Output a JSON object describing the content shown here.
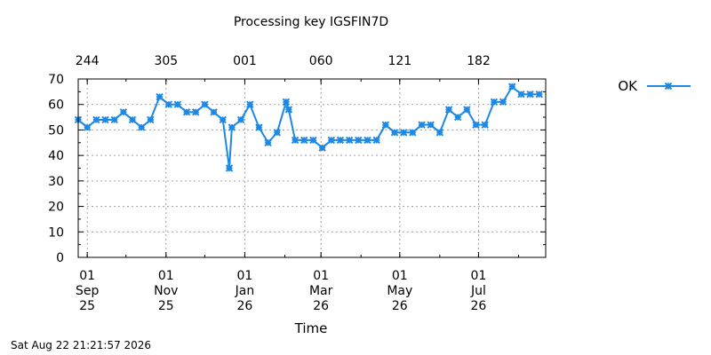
{
  "chart_data": {
    "type": "line",
    "title": "Processing key IGSFIN7D",
    "xlabel": "Time",
    "ylabel": "",
    "ylim": [
      0,
      70
    ],
    "y_ticks": [
      "0",
      "10",
      "20",
      "30",
      "40",
      "50",
      "60",
      "70"
    ],
    "x_ticks_bottom": [
      {
        "day": "01",
        "month": "Sep",
        "year": "25",
        "date": "2025-09-01"
      },
      {
        "day": "01",
        "month": "Nov",
        "year": "25",
        "date": "2025-11-01"
      },
      {
        "day": "01",
        "month": "Jan",
        "year": "26",
        "date": "2026-01-01"
      },
      {
        "day": "01",
        "month": "Mar",
        "year": "26",
        "date": "2026-03-01"
      },
      {
        "day": "01",
        "month": "May",
        "year": "26",
        "date": "2026-05-01"
      },
      {
        "day": "01",
        "month": "Jul",
        "year": "26",
        "date": "2026-07-01"
      }
    ],
    "x_ticks_top": [
      {
        "label": "244",
        "date": "2025-09-01"
      },
      {
        "label": "305",
        "date": "2025-11-01"
      },
      {
        "label": "001",
        "date": "2026-01-01"
      },
      {
        "label": "060",
        "date": "2026-03-01"
      },
      {
        "label": "121",
        "date": "2026-05-01"
      },
      {
        "label": "182",
        "date": "2026-07-01"
      }
    ],
    "xlim": [
      "2025-08-25",
      "2026-08-22"
    ],
    "grid": true,
    "legend_position": "right",
    "series": [
      {
        "name": "OK",
        "color": "#1e88e5",
        "marker": "x",
        "points": [
          [
            "2025-08-25",
            54
          ],
          [
            "2025-09-01",
            51
          ],
          [
            "2025-09-08",
            54
          ],
          [
            "2025-09-15",
            54
          ],
          [
            "2025-09-22",
            54
          ],
          [
            "2025-09-29",
            57
          ],
          [
            "2025-10-06",
            54
          ],
          [
            "2025-10-13",
            51
          ],
          [
            "2025-10-20",
            54
          ],
          [
            "2025-10-27",
            63
          ],
          [
            "2025-11-03",
            60
          ],
          [
            "2025-11-10",
            60
          ],
          [
            "2025-11-17",
            57
          ],
          [
            "2025-11-24",
            57
          ],
          [
            "2025-12-01",
            60
          ],
          [
            "2025-12-08",
            57
          ],
          [
            "2025-12-15",
            54
          ],
          [
            "2025-12-20",
            35
          ],
          [
            "2025-12-22",
            51
          ],
          [
            "2025-12-29",
            54
          ],
          [
            "2026-01-05",
            60
          ],
          [
            "2026-01-12",
            51
          ],
          [
            "2026-01-19",
            45
          ],
          [
            "2026-01-26",
            49
          ],
          [
            "2026-02-02",
            61
          ],
          [
            "2026-02-04",
            58
          ],
          [
            "2026-02-09",
            46
          ],
          [
            "2026-02-16",
            46
          ],
          [
            "2026-02-23",
            46
          ],
          [
            "2026-03-02",
            43
          ],
          [
            "2026-03-09",
            46
          ],
          [
            "2026-03-16",
            46
          ],
          [
            "2026-03-23",
            46
          ],
          [
            "2026-03-30",
            46
          ],
          [
            "2026-04-06",
            46
          ],
          [
            "2026-04-13",
            46
          ],
          [
            "2026-04-20",
            52
          ],
          [
            "2026-04-27",
            49
          ],
          [
            "2026-05-04",
            49
          ],
          [
            "2026-05-11",
            49
          ],
          [
            "2026-05-18",
            52
          ],
          [
            "2026-05-25",
            52
          ],
          [
            "2026-06-01",
            49
          ],
          [
            "2026-06-08",
            58
          ],
          [
            "2026-06-15",
            55
          ],
          [
            "2026-06-22",
            58
          ],
          [
            "2026-06-29",
            52
          ],
          [
            "2026-07-06",
            52
          ],
          [
            "2026-07-13",
            61
          ],
          [
            "2026-07-20",
            61
          ],
          [
            "2026-07-27",
            67
          ],
          [
            "2026-08-03",
            64
          ],
          [
            "2026-08-10",
            64
          ],
          [
            "2026-08-17",
            64
          ]
        ]
      }
    ]
  },
  "footer": {
    "timestamp": "Sat Aug 22 21:21:57 2026"
  }
}
